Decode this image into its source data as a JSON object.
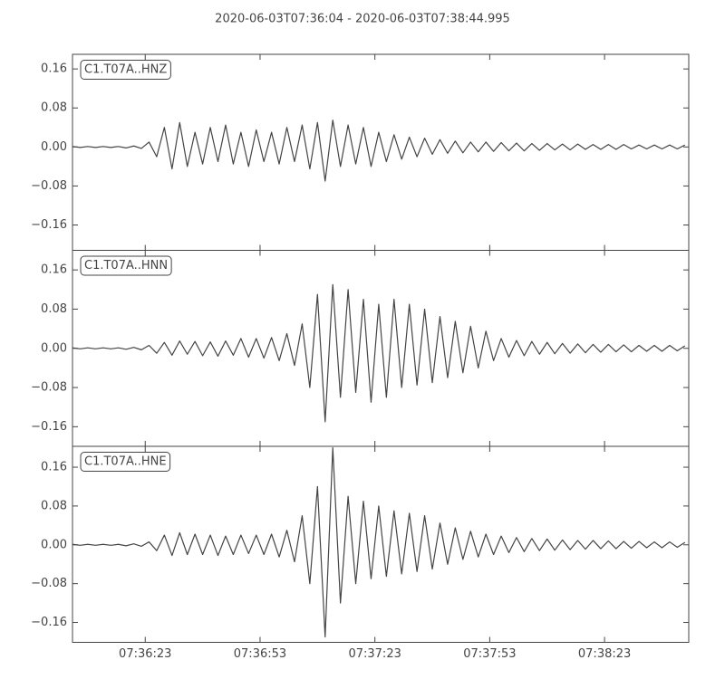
{
  "title": "2020-06-03T07:36:04  -  2020-06-03T07:38:44.995",
  "chart_data": [
    {
      "type": "line",
      "label": "C1.T07A..HNZ",
      "color": "#444444",
      "xlim": [
        0,
        160.995
      ],
      "ylim": [
        -0.212,
        0.19
      ],
      "yticks": [
        {
          "value": 0.16,
          "label": "0.16"
        },
        {
          "value": 0.08,
          "label": "0.08"
        },
        {
          "value": 0,
          "label": "0.00"
        },
        {
          "value": -0.08,
          "label": "−0.08"
        },
        {
          "value": -0.16,
          "label": "−0.16"
        }
      ],
      "x": [
        0,
        2,
        4,
        6,
        8,
        10,
        12,
        14,
        16,
        18,
        20,
        22,
        24,
        26,
        28,
        30,
        32,
        34,
        36,
        38,
        40,
        42,
        44,
        46,
        48,
        50,
        52,
        54,
        56,
        58,
        60,
        62,
        64,
        66,
        68,
        70,
        72,
        74,
        76,
        78,
        80,
        82,
        84,
        86,
        88,
        90,
        92,
        94,
        96,
        98,
        100,
        102,
        104,
        106,
        108,
        110,
        112,
        114,
        116,
        118,
        120,
        122,
        124,
        126,
        128,
        130,
        132,
        134,
        136,
        138,
        140,
        142,
        144,
        146,
        148,
        150,
        152,
        154,
        156,
        158,
        160
      ],
      "values": [
        0.001,
        -0.001,
        0.001,
        -0.001,
        0.001,
        -0.001,
        0.001,
        -0.002,
        0.002,
        -0.003,
        0.01,
        -0.02,
        0.04,
        -0.045,
        0.05,
        -0.04,
        0.03,
        -0.035,
        0.04,
        -0.03,
        0.045,
        -0.035,
        0.03,
        -0.04,
        0.035,
        -0.03,
        0.03,
        -0.035,
        0.04,
        -0.03,
        0.045,
        -0.045,
        0.05,
        -0.07,
        0.055,
        -0.04,
        0.045,
        -0.035,
        0.04,
        -0.04,
        0.03,
        -0.03,
        0.025,
        -0.025,
        0.02,
        -0.02,
        0.018,
        -0.015,
        0.015,
        -0.013,
        0.012,
        -0.012,
        0.01,
        -0.01,
        0.01,
        -0.009,
        0.009,
        -0.008,
        0.008,
        -0.008,
        0.007,
        -0.007,
        0.007,
        -0.006,
        0.006,
        -0.006,
        0.006,
        -0.005,
        0.005,
        -0.005,
        0.005,
        -0.005,
        0.005,
        -0.004,
        0.004,
        -0.004,
        0.004,
        -0.004,
        0.004,
        -0.004,
        0.004
      ]
    },
    {
      "type": "line",
      "label": "C1.T07A..HNN",
      "color": "#444444",
      "xlim": [
        0,
        160.995
      ],
      "ylim": [
        -0.2,
        0.2
      ],
      "yticks": [
        {
          "value": 0.16,
          "label": "0.16"
        },
        {
          "value": 0.08,
          "label": "0.08"
        },
        {
          "value": 0,
          "label": "0.00"
        },
        {
          "value": -0.08,
          "label": "−0.08"
        },
        {
          "value": -0.16,
          "label": "−0.16"
        }
      ],
      "x": [
        0,
        2,
        4,
        6,
        8,
        10,
        12,
        14,
        16,
        18,
        20,
        22,
        24,
        26,
        28,
        30,
        32,
        34,
        36,
        38,
        40,
        42,
        44,
        46,
        48,
        50,
        52,
        54,
        56,
        58,
        60,
        62,
        64,
        66,
        68,
        70,
        72,
        74,
        76,
        78,
        80,
        82,
        84,
        86,
        88,
        90,
        92,
        94,
        96,
        98,
        100,
        102,
        104,
        106,
        108,
        110,
        112,
        114,
        116,
        118,
        120,
        122,
        124,
        126,
        128,
        130,
        132,
        134,
        136,
        138,
        140,
        142,
        144,
        146,
        148,
        150,
        152,
        154,
        156,
        158,
        160
      ],
      "values": [
        0.001,
        -0.001,
        0.001,
        -0.001,
        0.001,
        -0.001,
        0.001,
        -0.002,
        0.002,
        -0.003,
        0.006,
        -0.01,
        0.012,
        -0.014,
        0.015,
        -0.012,
        0.014,
        -0.015,
        0.013,
        -0.016,
        0.015,
        -0.014,
        0.02,
        -0.018,
        0.02,
        -0.02,
        0.022,
        -0.025,
        0.03,
        -0.035,
        0.05,
        -0.08,
        0.11,
        -0.15,
        0.13,
        -0.1,
        0.12,
        -0.09,
        0.1,
        -0.11,
        0.09,
        -0.1,
        0.1,
        -0.08,
        0.09,
        -0.075,
        0.08,
        -0.07,
        0.065,
        -0.06,
        0.055,
        -0.05,
        0.045,
        -0.04,
        0.035,
        -0.025,
        0.02,
        -0.018,
        0.016,
        -0.015,
        0.014,
        -0.012,
        0.012,
        -0.011,
        0.01,
        -0.01,
        0.009,
        -0.009,
        0.008,
        -0.008,
        0.008,
        -0.007,
        0.007,
        -0.007,
        0.006,
        -0.006,
        0.006,
        -0.006,
        0.006,
        -0.005,
        0.005
      ]
    },
    {
      "type": "line",
      "label": "C1.T07A..HNE",
      "color": "#444444",
      "xlim": [
        0,
        160.995
      ],
      "ylim": [
        -0.201,
        0.203
      ],
      "yticks": [
        {
          "value": 0.16,
          "label": "0.16"
        },
        {
          "value": 0.08,
          "label": "0.08"
        },
        {
          "value": 0,
          "label": "0.00"
        },
        {
          "value": -0.08,
          "label": "−0.08"
        },
        {
          "value": -0.16,
          "label": "−0.16"
        }
      ],
      "xticks": [
        {
          "value": 19,
          "label": "07:36:23"
        },
        {
          "value": 49,
          "label": "07:36:53"
        },
        {
          "value": 79,
          "label": "07:37:23"
        },
        {
          "value": 109,
          "label": "07:37:53"
        },
        {
          "value": 139,
          "label": "07:38:23"
        }
      ],
      "x": [
        0,
        2,
        4,
        6,
        8,
        10,
        12,
        14,
        16,
        18,
        20,
        22,
        24,
        26,
        28,
        30,
        32,
        34,
        36,
        38,
        40,
        42,
        44,
        46,
        48,
        50,
        52,
        54,
        56,
        58,
        60,
        62,
        64,
        66,
        68,
        70,
        72,
        74,
        76,
        78,
        80,
        82,
        84,
        86,
        88,
        90,
        92,
        94,
        96,
        98,
        100,
        102,
        104,
        106,
        108,
        110,
        112,
        114,
        116,
        118,
        120,
        122,
        124,
        126,
        128,
        130,
        132,
        134,
        136,
        138,
        140,
        142,
        144,
        146,
        148,
        150,
        152,
        154,
        156,
        158,
        160
      ],
      "values": [
        0.001,
        -0.001,
        0.001,
        -0.001,
        0.001,
        -0.001,
        0.001,
        -0.002,
        0.002,
        -0.003,
        0.006,
        -0.012,
        0.02,
        -0.022,
        0.025,
        -0.02,
        0.022,
        -0.02,
        0.02,
        -0.022,
        0.018,
        -0.02,
        0.02,
        -0.018,
        0.02,
        -0.02,
        0.022,
        -0.025,
        0.03,
        -0.035,
        0.06,
        -0.08,
        0.12,
        -0.19,
        0.2,
        -0.12,
        0.1,
        -0.08,
        0.09,
        -0.07,
        0.08,
        -0.065,
        0.07,
        -0.06,
        0.065,
        -0.055,
        0.06,
        -0.05,
        0.045,
        -0.04,
        0.035,
        -0.03,
        0.028,
        -0.025,
        0.022,
        -0.02,
        0.018,
        -0.016,
        0.015,
        -0.014,
        0.013,
        -0.012,
        0.012,
        -0.011,
        0.01,
        -0.01,
        0.009,
        -0.009,
        0.009,
        -0.008,
        0.008,
        -0.008,
        0.007,
        -0.007,
        0.007,
        -0.006,
        0.006,
        -0.006,
        0.006,
        -0.005,
        0.005
      ]
    }
  ]
}
